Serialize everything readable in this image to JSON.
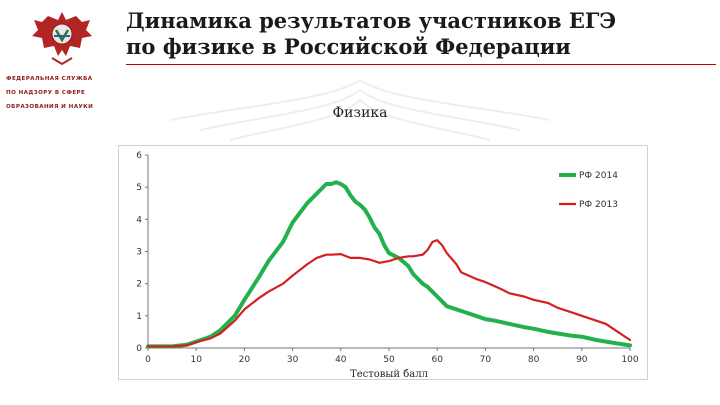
{
  "header": {
    "title_line1": "Динамика результатов участников ЕГЭ",
    "title_line2": "по физике в Российской Федерации",
    "org_line1": "ФЕДЕРАЛЬНАЯ СЛУЖБА",
    "org_line2": "ПО НАДЗОРУ В СФЕРЕ",
    "org_line3": "ОБРАЗОВАНИЯ И НАУКИ",
    "accent_color": "#c00000"
  },
  "logo": {
    "icon": "eagle-emblem-icon"
  },
  "subject_title": "Физика",
  "chart_data": {
    "type": "line",
    "xlabel": "Тестовый балл",
    "ylabel": "",
    "xlim": [
      0,
      100
    ],
    "ylim": [
      0,
      6
    ],
    "xticks": [
      "0",
      "10",
      "20",
      "30",
      "40",
      "50",
      "60",
      "70",
      "80",
      "90",
      "100"
    ],
    "yticks": [
      "0",
      "1",
      "2",
      "3",
      "4",
      "5",
      "6"
    ],
    "grid": false,
    "legend_position": "top-right",
    "series": [
      {
        "name": "РФ 2014",
        "color": "#22b14c",
        "x": [
          0,
          5,
          8,
          10,
          13,
          15,
          18,
          20,
          23,
          25,
          28,
          30,
          33,
          35,
          37,
          38,
          39,
          40,
          41,
          42,
          43,
          44,
          45,
          46,
          47,
          48,
          49,
          50,
          52,
          54,
          55,
          57,
          58,
          60,
          62,
          65,
          68,
          70,
          72,
          75,
          78,
          80,
          83,
          85,
          88,
          90,
          93,
          95,
          97,
          100
        ],
        "y": [
          0.05,
          0.05,
          0.1,
          0.2,
          0.35,
          0.55,
          1.0,
          1.5,
          2.2,
          2.7,
          3.3,
          3.9,
          4.5,
          4.8,
          5.1,
          5.1,
          5.15,
          5.1,
          5.0,
          4.75,
          4.55,
          4.45,
          4.3,
          4.05,
          3.75,
          3.55,
          3.2,
          2.95,
          2.8,
          2.55,
          2.3,
          2.0,
          1.9,
          1.6,
          1.3,
          1.15,
          1.0,
          0.9,
          0.85,
          0.75,
          0.65,
          0.6,
          0.5,
          0.45,
          0.38,
          0.35,
          0.25,
          0.2,
          0.15,
          0.08
        ]
      },
      {
        "name": "РФ 2013",
        "color": "#d42020",
        "x": [
          0,
          5,
          8,
          10,
          13,
          15,
          18,
          20,
          23,
          25,
          28,
          30,
          33,
          35,
          37,
          38,
          40,
          42,
          44,
          46,
          48,
          50,
          52,
          54,
          55,
          57,
          58,
          59,
          60,
          61,
          62,
          64,
          65,
          68,
          70,
          73,
          75,
          78,
          80,
          83,
          85,
          88,
          90,
          93,
          95,
          97,
          100
        ],
        "y": [
          0.05,
          0.05,
          0.08,
          0.18,
          0.3,
          0.45,
          0.85,
          1.2,
          1.55,
          1.75,
          2.0,
          2.25,
          2.6,
          2.8,
          2.9,
          2.9,
          2.92,
          2.8,
          2.8,
          2.75,
          2.65,
          2.7,
          2.8,
          2.85,
          2.85,
          2.9,
          3.05,
          3.3,
          3.35,
          3.2,
          2.95,
          2.6,
          2.35,
          2.15,
          2.05,
          1.85,
          1.7,
          1.6,
          1.5,
          1.4,
          1.25,
          1.1,
          1.0,
          0.85,
          0.75,
          0.55,
          0.25
        ]
      }
    ]
  }
}
